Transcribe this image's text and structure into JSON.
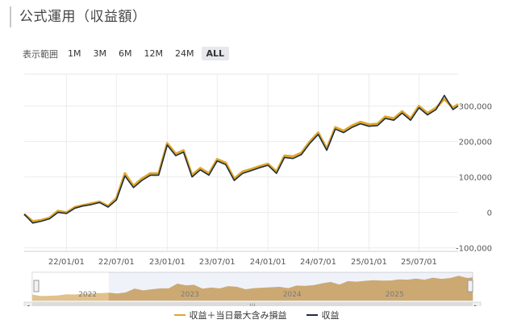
{
  "page": {
    "title": "公式運用（収益額）"
  },
  "range_selector": {
    "label": "表示範囲",
    "buttons": [
      "1M",
      "3M",
      "6M",
      "12M",
      "24M",
      "ALL"
    ],
    "selected": "ALL"
  },
  "colors": {
    "gold": "#e0a62a",
    "navy": "#1d2f3f",
    "navigator_fill": "#c8902e",
    "navigator_mask": "#d3daf0"
  },
  "chart_data": {
    "type": "line",
    "x_tick_labels": [
      "22/01/01",
      "22/07/01",
      "23/01/01",
      "23/07/01",
      "24/01/01",
      "24/07/01",
      "25/01/01",
      "25/07/01"
    ],
    "y_tick_labels": [
      "300,000",
      "200,000",
      "100,000",
      "0",
      "-100,000"
    ],
    "ylim": [
      -110000,
      390000
    ],
    "xlim": [
      "2021-08-01",
      "2025-11-20"
    ],
    "grid": true,
    "legend_position": "bottom",
    "series": [
      {
        "name": "収益＋当日最大含み損益",
        "color": "#e0a62a",
        "x": [
          "2021-08-01",
          "2021-09-01",
          "2021-10-01",
          "2021-11-01",
          "2021-12-01",
          "2022-01-01",
          "2022-02-01",
          "2022-03-01",
          "2022-04-01",
          "2022-05-01",
          "2022-06-01",
          "2022-07-01",
          "2022-08-01",
          "2022-09-01",
          "2022-10-01",
          "2022-11-01",
          "2022-12-01",
          "2023-01-01",
          "2023-02-01",
          "2023-03-01",
          "2023-04-01",
          "2023-05-01",
          "2023-06-01",
          "2023-07-01",
          "2023-08-01",
          "2023-09-01",
          "2023-10-01",
          "2023-11-01",
          "2023-12-01",
          "2024-01-01",
          "2024-02-01",
          "2024-03-01",
          "2024-04-01",
          "2024-05-01",
          "2024-06-01",
          "2024-07-01",
          "2024-08-01",
          "2024-09-01",
          "2024-10-01",
          "2024-11-01",
          "2024-12-01",
          "2025-01-01",
          "2025-02-01",
          "2025-03-01",
          "2025-04-01",
          "2025-05-01",
          "2025-06-01",
          "2025-07-01",
          "2025-08-01",
          "2025-09-01",
          "2025-10-01",
          "2025-11-01",
          "2025-11-20"
        ],
        "values": [
          -5000,
          -25000,
          -22000,
          -15000,
          4000,
          0,
          15000,
          20000,
          25000,
          30000,
          18000,
          40000,
          110000,
          75000,
          95000,
          110000,
          110000,
          195000,
          165000,
          175000,
          105000,
          125000,
          110000,
          150000,
          140000,
          95000,
          115000,
          122000,
          130000,
          137000,
          115000,
          160000,
          158000,
          168000,
          200000,
          225000,
          180000,
          240000,
          230000,
          245000,
          255000,
          248000,
          250000,
          270000,
          265000,
          285000,
          265000,
          300000,
          280000,
          295000,
          320000,
          295000,
          305000
        ]
      },
      {
        "name": "収益",
        "color": "#1d2f3f",
        "x": [
          "2021-08-01",
          "2021-09-01",
          "2021-10-01",
          "2021-11-01",
          "2021-12-01",
          "2022-01-01",
          "2022-02-01",
          "2022-03-01",
          "2022-04-01",
          "2022-05-01",
          "2022-06-01",
          "2022-07-01",
          "2022-08-01",
          "2022-09-01",
          "2022-10-01",
          "2022-11-01",
          "2022-12-01",
          "2023-01-01",
          "2023-02-01",
          "2023-03-01",
          "2023-04-01",
          "2023-05-01",
          "2023-06-01",
          "2023-07-01",
          "2023-08-01",
          "2023-09-01",
          "2023-10-01",
          "2023-11-01",
          "2023-12-01",
          "2024-01-01",
          "2024-02-01",
          "2024-03-01",
          "2024-04-01",
          "2024-05-01",
          "2024-06-01",
          "2024-07-01",
          "2024-08-01",
          "2024-09-01",
          "2024-10-01",
          "2024-11-01",
          "2024-12-01",
          "2025-01-01",
          "2025-02-01",
          "2025-03-01",
          "2025-04-01",
          "2025-05-01",
          "2025-06-01",
          "2025-07-01",
          "2025-08-01",
          "2025-09-01",
          "2025-10-01",
          "2025-11-01",
          "2025-11-20"
        ],
        "values": [
          -5000,
          -30000,
          -25000,
          -18000,
          0,
          -3000,
          12000,
          18000,
          22000,
          28000,
          15000,
          35000,
          103000,
          70000,
          90000,
          105000,
          105000,
          190000,
          160000,
          170000,
          100000,
          120000,
          105000,
          145000,
          135000,
          90000,
          110000,
          118000,
          126000,
          133000,
          110000,
          155000,
          152000,
          163000,
          195000,
          220000,
          175000,
          235000,
          225000,
          240000,
          250000,
          243000,
          245000,
          265000,
          260000,
          280000,
          260000,
          295000,
          275000,
          290000,
          330000,
          290000,
          300000
        ]
      }
    ],
    "navigator": {
      "year_labels": [
        "2022",
        "2023",
        "2024",
        "2025"
      ],
      "selection": [
        "2022-05-01",
        "2025-11-20"
      ]
    }
  },
  "legend": {
    "gold_label": "収益＋当日最大含み損益",
    "navy_label": "収益"
  }
}
